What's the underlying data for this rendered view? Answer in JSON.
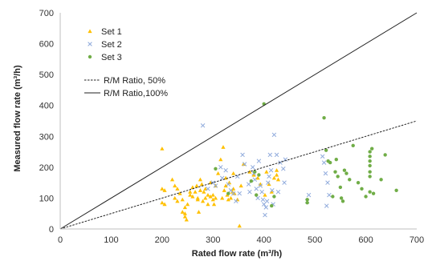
{
  "chart_data": {
    "type": "scatter",
    "xlabel": "Rated flow rate (m³/h)",
    "ylabel": "Measured flow rate (m³/h)",
    "xlim": [
      0,
      700
    ],
    "ylim": [
      0,
      700
    ],
    "x_ticks": [
      "0",
      "100",
      "200",
      "300",
      "400",
      "500",
      "600",
      "700"
    ],
    "y_ticks": [
      "0",
      "100",
      "200",
      "300",
      "400",
      "500",
      "600",
      "700"
    ],
    "grid": false,
    "legend_position": "top-left",
    "series": [
      {
        "name": "Set 1",
        "marker": "triangle",
        "color": "#ffc000",
        "points": [
          [
            200,
            260
          ],
          [
            200,
            130
          ],
          [
            205,
            125
          ],
          [
            200,
            85
          ],
          [
            205,
            80
          ],
          [
            220,
            160
          ],
          [
            225,
            140
          ],
          [
            225,
            100
          ],
          [
            230,
            130
          ],
          [
            230,
            90
          ],
          [
            235,
            115
          ],
          [
            240,
            55
          ],
          [
            240,
            95
          ],
          [
            245,
            50
          ],
          [
            245,
            40
          ],
          [
            245,
            70
          ],
          [
            248,
            30
          ],
          [
            250,
            80
          ],
          [
            255,
            120
          ],
          [
            255,
            110
          ],
          [
            260,
            105
          ],
          [
            260,
            135
          ],
          [
            265,
            120
          ],
          [
            268,
            140
          ],
          [
            270,
            100
          ],
          [
            270,
            95
          ],
          [
            272,
            55
          ],
          [
            275,
            125
          ],
          [
            275,
            160
          ],
          [
            278,
            145
          ],
          [
            280,
            90
          ],
          [
            282,
            120
          ],
          [
            285,
            130
          ],
          [
            285,
            100
          ],
          [
            290,
            110
          ],
          [
            290,
            80
          ],
          [
            295,
            105
          ],
          [
            295,
            150
          ],
          [
            300,
            95
          ],
          [
            300,
            110
          ],
          [
            302,
            80
          ],
          [
            305,
            140
          ],
          [
            305,
            100
          ],
          [
            310,
            180
          ],
          [
            315,
            225
          ],
          [
            318,
            100
          ],
          [
            320,
            265
          ],
          [
            322,
            125
          ],
          [
            325,
            165
          ],
          [
            325,
            140
          ],
          [
            328,
            110
          ],
          [
            330,
            95
          ],
          [
            332,
            150
          ],
          [
            335,
            100
          ],
          [
            338,
            120
          ],
          [
            340,
            180
          ],
          [
            340,
            130
          ],
          [
            342,
            115
          ],
          [
            348,
            95
          ],
          [
            352,
            10
          ],
          [
            355,
            140
          ],
          [
            360,
            210
          ],
          [
            372,
            185
          ],
          [
            380,
            175
          ],
          [
            388,
            165
          ],
          [
            393,
            145
          ],
          [
            402,
            110
          ],
          [
            405,
            185
          ],
          [
            410,
            145
          ],
          [
            415,
            120
          ],
          [
            420,
            165
          ],
          [
            425,
            190
          ],
          [
            425,
            175
          ],
          [
            428,
            160
          ]
        ]
      },
      {
        "name": "Set 2",
        "marker": "cross",
        "color": "#8faadc",
        "points": [
          [
            280,
            335
          ],
          [
            290,
            130
          ],
          [
            300,
            150
          ],
          [
            305,
            140
          ],
          [
            315,
            200
          ],
          [
            318,
            165
          ],
          [
            325,
            190
          ],
          [
            330,
            145
          ],
          [
            335,
            125
          ],
          [
            340,
            115
          ],
          [
            345,
            90
          ],
          [
            348,
            170
          ],
          [
            352,
            115
          ],
          [
            358,
            240
          ],
          [
            362,
            210
          ],
          [
            370,
            145
          ],
          [
            372,
            120
          ],
          [
            378,
            200
          ],
          [
            380,
            180
          ],
          [
            382,
            160
          ],
          [
            385,
            130
          ],
          [
            388,
            100
          ],
          [
            390,
            220
          ],
          [
            393,
            140
          ],
          [
            396,
            120
          ],
          [
            398,
            95
          ],
          [
            400,
            80
          ],
          [
            402,
            45
          ],
          [
            404,
            70
          ],
          [
            406,
            90
          ],
          [
            408,
            150
          ],
          [
            410,
            170
          ],
          [
            412,
            240
          ],
          [
            414,
            190
          ],
          [
            416,
            125
          ],
          [
            418,
            80
          ],
          [
            420,
            305
          ],
          [
            425,
            240
          ],
          [
            428,
            120
          ],
          [
            432,
            215
          ],
          [
            438,
            195
          ],
          [
            440,
            150
          ],
          [
            442,
            225
          ],
          [
            485,
            90
          ],
          [
            488,
            110
          ],
          [
            515,
            235
          ],
          [
            518,
            215
          ],
          [
            521,
            180
          ],
          [
            523,
            75
          ],
          [
            525,
            150
          ],
          [
            528,
            110
          ]
        ]
      },
      {
        "name": "Set 3",
        "marker": "circle",
        "color": "#70ad47",
        "points": [
          [
            305,
            195
          ],
          [
            330,
            115
          ],
          [
            375,
            155
          ],
          [
            382,
            185
          ],
          [
            385,
            110
          ],
          [
            390,
            175
          ],
          [
            400,
            405
          ],
          [
            415,
            75
          ],
          [
            420,
            105
          ],
          [
            485,
            85
          ],
          [
            485,
            95
          ],
          [
            518,
            360
          ],
          [
            522,
            255
          ],
          [
            526,
            220
          ],
          [
            530,
            215
          ],
          [
            535,
            105
          ],
          [
            540,
            185
          ],
          [
            542,
            225
          ],
          [
            545,
            170
          ],
          [
            550,
            135
          ],
          [
            552,
            100
          ],
          [
            555,
            90
          ],
          [
            558,
            190
          ],
          [
            562,
            180
          ],
          [
            568,
            160
          ],
          [
            575,
            270
          ],
          [
            585,
            150
          ],
          [
            592,
            130
          ],
          [
            600,
            105
          ],
          [
            608,
            250
          ],
          [
            608,
            235
          ],
          [
            608,
            220
          ],
          [
            608,
            205
          ],
          [
            608,
            185
          ],
          [
            608,
            170
          ],
          [
            608,
            120
          ],
          [
            612,
            260
          ],
          [
            615,
            115
          ],
          [
            630,
            160
          ],
          [
            638,
            240
          ],
          [
            660,
            125
          ]
        ]
      },
      {
        "name": "R/M Ratio, 50%",
        "line": "dashed",
        "color": "#222222",
        "points": [
          [
            0,
            0
          ],
          [
            700,
            350
          ]
        ]
      },
      {
        "name": "R/M Ratio,100%",
        "line": "solid",
        "color": "#222222",
        "points": [
          [
            0,
            0
          ],
          [
            700,
            700
          ]
        ]
      }
    ]
  }
}
